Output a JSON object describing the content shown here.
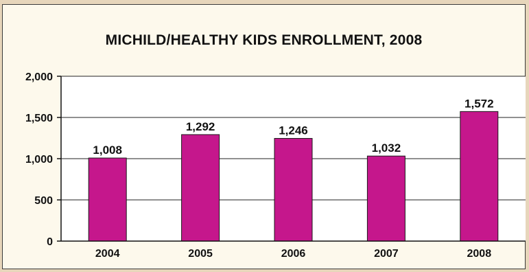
{
  "chart_data": {
    "type": "bar",
    "title": "MICHILD/HEALTHY KIDS ENROLLMENT, 2008",
    "categories": [
      "2004",
      "2005",
      "2006",
      "2007",
      "2008"
    ],
    "values": [
      1008,
      1292,
      1246,
      1032,
      1572
    ],
    "value_labels": [
      "1,008",
      "1,292",
      "1,246",
      "1,032",
      "1,572"
    ],
    "ylim": [
      0,
      2000
    ],
    "yticks": [
      0,
      500,
      1000,
      1500,
      2000
    ],
    "ytick_labels": [
      "0",
      "500",
      "1,000",
      "1,500",
      "2,000"
    ],
    "xlabel": "",
    "ylabel": "",
    "grid": true,
    "colors": {
      "bar": "#c5178c",
      "bar_edge": "#1a1a1a",
      "plot_bg": "#ffffff",
      "page_bg": "#fdf9ec"
    }
  }
}
